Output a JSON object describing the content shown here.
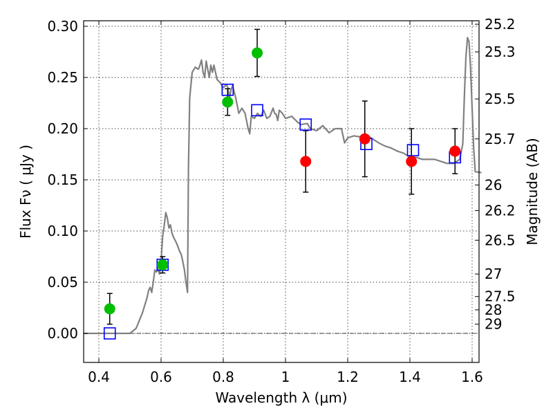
{
  "chart_data": {
    "type": "scatter",
    "xlabel": "Wavelength  λ (μm)",
    "ylabel": "Flux  Fν  ( μJy )",
    "ylabel_right": "Magnitude (AB)",
    "xlim": [
      0.35,
      1.63
    ],
    "ylim": [
      -0.03,
      0.303
    ],
    "grid": true,
    "x_ticks": [
      0.4,
      0.6,
      0.8,
      1.0,
      1.2,
      1.4,
      1.6
    ],
    "x_tick_labels": [
      "0.4",
      "0.6",
      "0.8",
      "1",
      "1.2",
      "1.4",
      "1.6"
    ],
    "y_ticks": [
      0.0,
      0.05,
      0.1,
      0.15,
      0.2,
      0.25,
      0.3
    ],
    "y_tick_labels": [
      "0.00",
      "0.05",
      "0.10",
      "0.15",
      "0.20",
      "0.25",
      "0.30"
    ],
    "right_ticks": [
      {
        "label": "25.2",
        "flux": 0.302
      },
      {
        "label": "25.3",
        "flux": 0.275
      },
      {
        "label": "25.5",
        "flux": 0.229
      },
      {
        "label": "25.7",
        "flux": 0.19
      },
      {
        "label": "26",
        "flux": 0.145
      },
      {
        "label": "26.2",
        "flux": 0.12
      },
      {
        "label": "26.5",
        "flux": 0.091
      },
      {
        "label": "27",
        "flux": 0.058
      },
      {
        "label": "27.5",
        "flux": 0.036
      },
      {
        "label": "28",
        "flux": 0.023
      },
      {
        "label": "29",
        "flux": 0.009
      }
    ],
    "model_spectrum": {
      "color": "#808080",
      "points": [
        [
          0.35,
          0.0
        ],
        [
          0.43,
          0.0
        ],
        [
          0.5,
          0.0
        ],
        [
          0.52,
          0.005
        ],
        [
          0.54,
          0.02
        ],
        [
          0.555,
          0.035
        ],
        [
          0.56,
          0.042
        ],
        [
          0.565,
          0.045
        ],
        [
          0.57,
          0.04
        ],
        [
          0.575,
          0.05
        ],
        [
          0.58,
          0.062
        ],
        [
          0.585,
          0.06
        ],
        [
          0.59,
          0.063
        ],
        [
          0.595,
          0.058
        ],
        [
          0.6,
          0.07
        ],
        [
          0.605,
          0.095
        ],
        [
          0.61,
          0.105
        ],
        [
          0.615,
          0.118
        ],
        [
          0.62,
          0.113
        ],
        [
          0.625,
          0.103
        ],
        [
          0.63,
          0.106
        ],
        [
          0.635,
          0.098
        ],
        [
          0.64,
          0.094
        ],
        [
          0.645,
          0.091
        ],
        [
          0.65,
          0.088
        ],
        [
          0.655,
          0.084
        ],
        [
          0.66,
          0.08
        ],
        [
          0.665,
          0.077
        ],
        [
          0.67,
          0.07
        ],
        [
          0.675,
          0.062
        ],
        [
          0.68,
          0.05
        ],
        [
          0.685,
          0.04
        ],
        [
          0.688,
          0.16
        ],
        [
          0.692,
          0.23
        ],
        [
          0.7,
          0.255
        ],
        [
          0.71,
          0.26
        ],
        [
          0.72,
          0.258
        ],
        [
          0.725,
          0.262
        ],
        [
          0.73,
          0.267
        ],
        [
          0.735,
          0.255
        ],
        [
          0.74,
          0.25
        ],
        [
          0.745,
          0.266
        ],
        [
          0.75,
          0.258
        ],
        [
          0.755,
          0.25
        ],
        [
          0.76,
          0.262
        ],
        [
          0.765,
          0.255
        ],
        [
          0.77,
          0.262
        ],
        [
          0.78,
          0.248
        ],
        [
          0.79,
          0.245
        ],
        [
          0.8,
          0.24
        ],
        [
          0.81,
          0.243
        ],
        [
          0.815,
          0.24
        ],
        [
          0.82,
          0.23
        ],
        [
          0.825,
          0.238
        ],
        [
          0.83,
          0.242
        ],
        [
          0.84,
          0.23
        ],
        [
          0.85,
          0.215
        ],
        [
          0.86,
          0.22
        ],
        [
          0.87,
          0.215
        ],
        [
          0.88,
          0.2
        ],
        [
          0.885,
          0.195
        ],
        [
          0.89,
          0.212
        ],
        [
          0.9,
          0.21
        ],
        [
          0.91,
          0.215
        ],
        [
          0.92,
          0.212
        ],
        [
          0.93,
          0.218
        ],
        [
          0.94,
          0.21
        ],
        [
          0.95,
          0.212
        ],
        [
          0.96,
          0.22
        ],
        [
          0.965,
          0.215
        ],
        [
          0.97,
          0.214
        ],
        [
          0.975,
          0.208
        ],
        [
          0.98,
          0.218
        ],
        [
          0.99,
          0.215
        ],
        [
          1.0,
          0.21
        ],
        [
          1.02,
          0.212
        ],
        [
          1.04,
          0.206
        ],
        [
          1.05,
          0.204
        ],
        [
          1.07,
          0.205
        ],
        [
          1.08,
          0.2
        ],
        [
          1.1,
          0.198
        ],
        [
          1.12,
          0.203
        ],
        [
          1.14,
          0.196
        ],
        [
          1.16,
          0.2
        ],
        [
          1.18,
          0.2
        ],
        [
          1.19,
          0.186
        ],
        [
          1.2,
          0.191
        ],
        [
          1.22,
          0.193
        ],
        [
          1.24,
          0.192
        ],
        [
          1.26,
          0.194
        ],
        [
          1.28,
          0.19
        ],
        [
          1.3,
          0.186
        ],
        [
          1.32,
          0.183
        ],
        [
          1.34,
          0.181
        ],
        [
          1.36,
          0.178
        ],
        [
          1.38,
          0.176
        ],
        [
          1.4,
          0.172
        ],
        [
          1.42,
          0.172
        ],
        [
          1.44,
          0.17
        ],
        [
          1.46,
          0.17
        ],
        [
          1.48,
          0.17
        ],
        [
          1.5,
          0.168
        ],
        [
          1.52,
          0.166
        ],
        [
          1.54,
          0.166
        ],
        [
          1.55,
          0.168
        ],
        [
          1.56,
          0.17
        ],
        [
          1.57,
          0.185
        ],
        [
          1.575,
          0.23
        ],
        [
          1.58,
          0.27
        ],
        [
          1.585,
          0.289
        ],
        [
          1.59,
          0.285
        ],
        [
          1.595,
          0.26
        ],
        [
          1.6,
          0.22
        ],
        [
          1.605,
          0.18
        ],
        [
          1.61,
          0.158
        ],
        [
          1.63,
          0.157
        ]
      ]
    },
    "series": [
      {
        "marker": "circle",
        "color": "#00bf00",
        "points": [
          {
            "x": 0.435,
            "y": 0.024,
            "err": 0.015
          },
          {
            "x": 0.605,
            "y": 0.067,
            "err": 0.008
          },
          {
            "x": 0.814,
            "y": 0.226,
            "err": 0.013
          },
          {
            "x": 0.909,
            "y": 0.274,
            "err": 0.023
          }
        ]
      },
      {
        "marker": "circle",
        "color": "#ff0000",
        "points": [
          {
            "x": 1.065,
            "y": 0.168,
            "err": 0.03
          },
          {
            "x": 1.255,
            "y": 0.19,
            "err": 0.037
          },
          {
            "x": 1.405,
            "y": 0.168,
            "err": 0.032
          },
          {
            "x": 1.545,
            "y": 0.178,
            "err": 0.022
          }
        ]
      },
      {
        "marker": "square-open",
        "color": "#0000ff",
        "points": [
          {
            "x": 0.435,
            "y": 0.0
          },
          {
            "x": 0.605,
            "y": 0.067
          },
          {
            "x": 0.814,
            "y": 0.238
          },
          {
            "x": 0.909,
            "y": 0.218
          },
          {
            "x": 1.065,
            "y": 0.204
          },
          {
            "x": 1.26,
            "y": 0.185
          },
          {
            "x": 1.41,
            "y": 0.179
          },
          {
            "x": 1.545,
            "y": 0.172
          }
        ]
      }
    ]
  }
}
